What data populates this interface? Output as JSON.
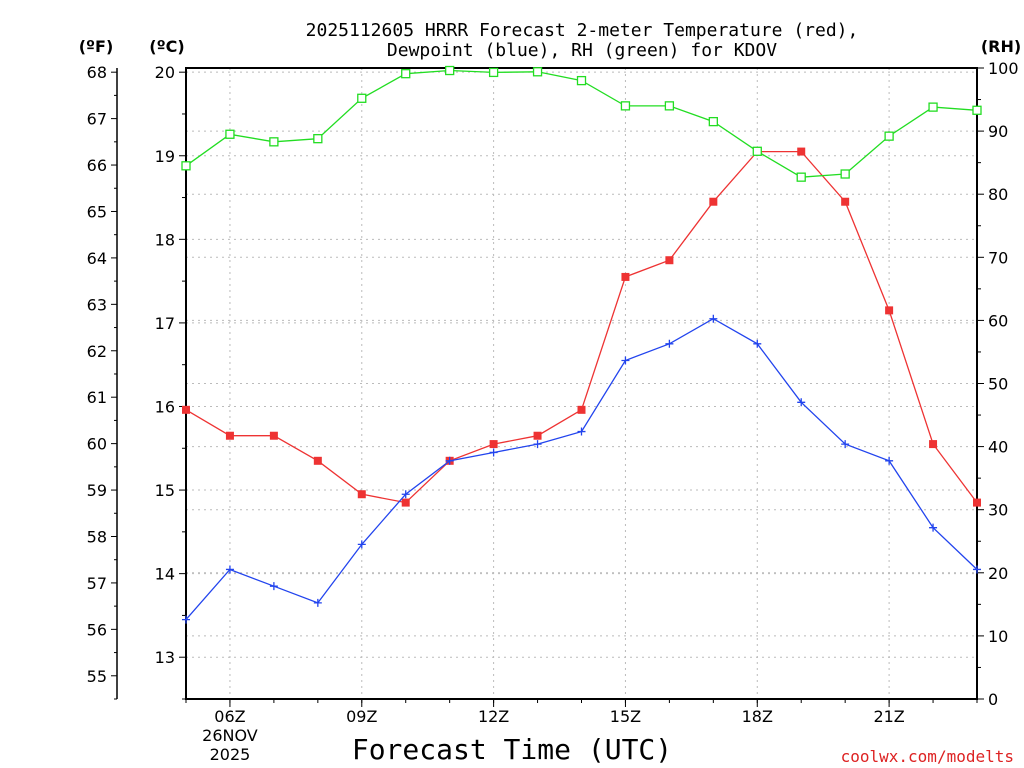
{
  "chart_data": {
    "type": "line",
    "title": {
      "line1": "2025112605 HRRR Forecast 2-meter Temperature (red),",
      "line2": "Dewpoint (blue), RH (green) for KDOV"
    },
    "xlabel": "Forecast Time (UTC)",
    "credit": "coolwx.com/modelts",
    "x_hours": [
      5,
      6,
      7,
      8,
      9,
      10,
      11,
      12,
      13,
      14,
      15,
      16,
      17,
      18,
      19,
      20,
      21,
      22,
      23
    ],
    "xlim": [
      5,
      23
    ],
    "x_ticks": [
      {
        "hour": 6,
        "label": "06Z",
        "sub1": "26NOV",
        "sub2": "2025"
      },
      {
        "hour": 9,
        "label": "09Z"
      },
      {
        "hour": 12,
        "label": "12Z"
      },
      {
        "hour": 15,
        "label": "15Z"
      },
      {
        "hour": 18,
        "label": "18Z"
      },
      {
        "hour": 21,
        "label": "21Z"
      }
    ],
    "axes": {
      "celsius": {
        "unit_label": "(ºC)",
        "ylim": [
          12.5,
          20.05
        ],
        "ticks": [
          13,
          14,
          15,
          16,
          17,
          18,
          19,
          20
        ]
      },
      "fahrenheit": {
        "unit_label": "(ºF)",
        "ticks": [
          55,
          56,
          57,
          58,
          59,
          60,
          61,
          62,
          63,
          64,
          65,
          66,
          67,
          68
        ]
      },
      "rh": {
        "unit_label": "(RH)",
        "ylim": [
          0,
          100
        ],
        "ticks": [
          0,
          10,
          20,
          30,
          40,
          50,
          60,
          70,
          80,
          90,
          100
        ]
      }
    },
    "series": [
      {
        "name": "2-meter Temperature",
        "axis": "celsius",
        "color": "#ee3333",
        "marker": "filled-square",
        "values": [
          15.96,
          15.65,
          15.65,
          15.35,
          14.95,
          14.85,
          15.35,
          15.55,
          15.65,
          15.96,
          17.55,
          17.75,
          18.45,
          19.05,
          19.05,
          18.45,
          17.15,
          15.55,
          14.85
        ]
      },
      {
        "name": "Dewpoint",
        "axis": "celsius",
        "color": "#2244ee",
        "marker": "plus",
        "values": [
          13.45,
          14.05,
          13.85,
          13.65,
          14.35,
          14.95,
          15.35,
          15.45,
          15.55,
          15.7,
          16.55,
          16.75,
          17.05,
          16.75,
          16.05,
          15.55,
          15.35,
          14.55,
          14.05
        ]
      },
      {
        "name": "RH",
        "axis": "rh",
        "color": "#22dd22",
        "marker": "open-square",
        "values": [
          84.5,
          89.5,
          88.3,
          88.8,
          95.2,
          99.1,
          99.6,
          99.3,
          99.4,
          98.0,
          94.0,
          94.0,
          91.5,
          86.8,
          82.7,
          83.2,
          89.2,
          93.8,
          93.3
        ]
      }
    ],
    "grid": true
  }
}
